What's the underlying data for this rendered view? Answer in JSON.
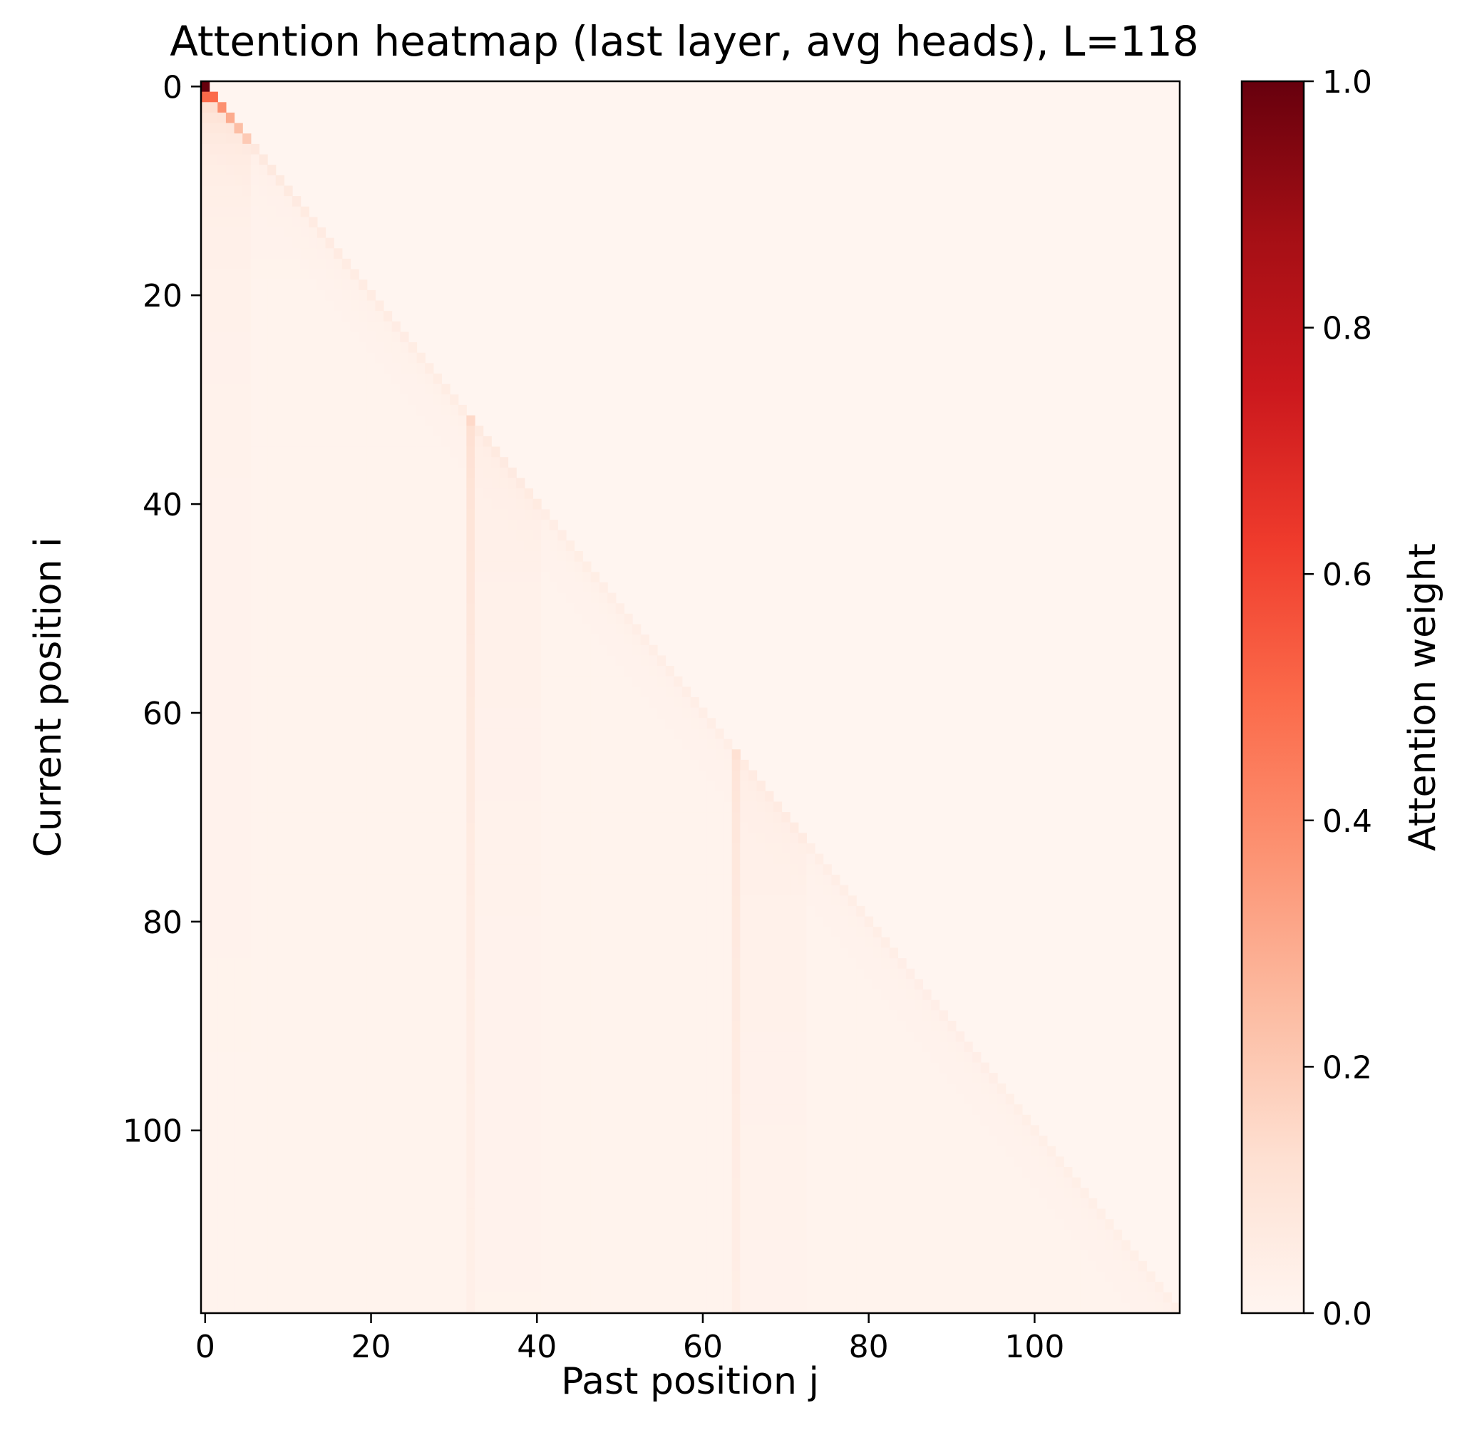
{
  "chart_data": {
    "type": "heatmap",
    "title": "Attention heatmap (last layer, avg heads), L=118",
    "xlabel": "Past position j",
    "ylabel": "Current position i",
    "colorbar_label": "Attention weight",
    "colormap": "Reds",
    "L": 118,
    "x_range": [
      0,
      117
    ],
    "y_range": [
      0,
      117
    ],
    "x_ticks": [
      0,
      20,
      40,
      60,
      80,
      100
    ],
    "y_ticks": [
      0,
      20,
      40,
      60,
      80,
      100
    ],
    "colorbar_range": [
      0.0,
      1.0
    ],
    "colorbar_ticks": [
      0.0,
      0.2,
      0.4,
      0.6,
      0.8,
      1.0
    ],
    "mask": "causal (j <= i)",
    "bright_first_rows": [
      {
        "i": 0,
        "j": 0,
        "weight": 1.0
      },
      {
        "i": 1,
        "j": 0,
        "weight": 0.5
      },
      {
        "i": 1,
        "j": 1,
        "weight": 0.5
      },
      {
        "i": 2,
        "j": 2,
        "weight": 0.38
      },
      {
        "i": 3,
        "j": 3,
        "weight": 0.3
      },
      {
        "i": 4,
        "j": 4,
        "weight": 0.24
      },
      {
        "i": 5,
        "j": 5,
        "weight": 0.2
      }
    ],
    "stripe_columns": [
      {
        "j": 32,
        "from_row": 32,
        "weight": 0.08
      },
      {
        "j": 64,
        "from_row": 64,
        "weight": 0.06
      }
    ]
  }
}
